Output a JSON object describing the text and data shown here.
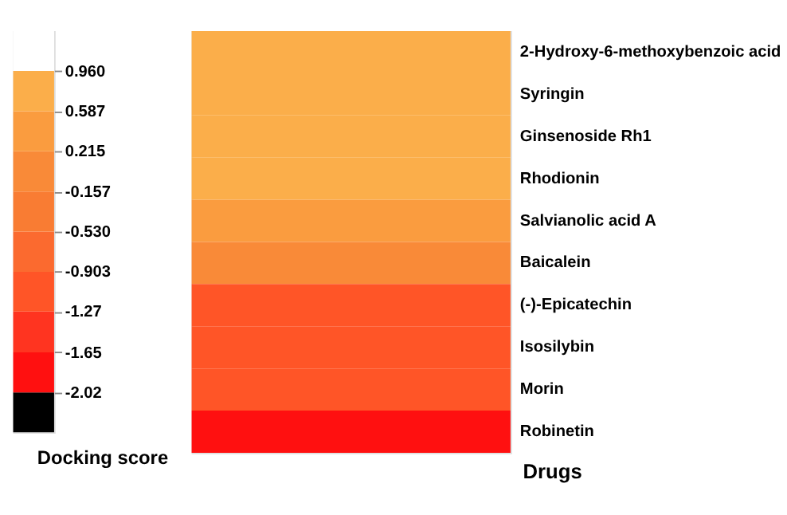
{
  "chart_data": {
    "type": "heatmap",
    "ylabel": "Drugs",
    "clabel": "Docking score",
    "categories": [
      null
    ],
    "y_categories": [
      "2-Hydroxy-6-methoxybenzoic acid",
      "Syringin",
      "Ginsenoside Rh1",
      "Rhodionin",
      "Salvianolic acid A",
      "Baicalein",
      "(-)-Epicatechin",
      "Isosilybin",
      "Morin",
      "Robinetin"
    ],
    "cells": [
      [
        0.77
      ],
      [
        0.77
      ],
      [
        0.77
      ],
      [
        0.77
      ],
      [
        0.4
      ],
      [
        0.03
      ],
      [
        -1.09
      ],
      [
        -1.09
      ],
      [
        -1.09
      ],
      [
        -1.84
      ]
    ],
    "clim": [
      -2.39,
      1.33
    ],
    "cticks": [
      {
        "value": -2.02,
        "label": "-2.02"
      },
      {
        "value": -1.65,
        "label": "-1.65"
      },
      {
        "value": -1.27,
        "label": "-1.27"
      },
      {
        "value": -0.903,
        "label": "-0.903"
      },
      {
        "value": -0.53,
        "label": "-0.530"
      },
      {
        "value": -0.157,
        "label": "-0.157"
      },
      {
        "value": 0.215,
        "label": "0.215"
      },
      {
        "value": 0.587,
        "label": "0.587"
      },
      {
        "value": 0.96,
        "label": "0.960"
      }
    ],
    "colors": [
      "#000000",
      "#ff1010",
      "#ff3420",
      "#ff5527",
      "#fb6a2f",
      "#f97c33",
      "#f98a38",
      "#fa9c3f",
      "#fbae4a",
      "#ffffff"
    ]
  }
}
